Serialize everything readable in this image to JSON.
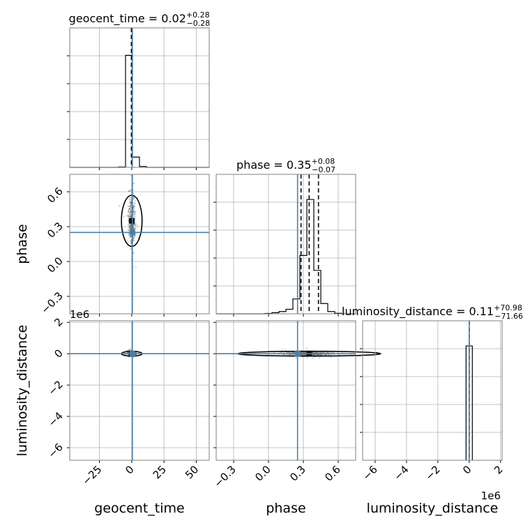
{
  "chart_data": {
    "type": "scatter",
    "subtype": "corner-plot",
    "parameters": [
      {
        "key": "geocent_time",
        "label": "geocent_time",
        "title_name": "geocent_time",
        "median": "0.02",
        "plus": "+0.28",
        "minus": "−0.28",
        "range": [
          -48,
          60
        ],
        "ticks": [
          -25,
          0,
          25,
          50
        ],
        "tick_labels": [
          "−25",
          "0",
          "25",
          "50"
        ],
        "truth": 0.5,
        "quantiles": [
          -0.26,
          0.02,
          0.3
        ],
        "hist_edges": [
          -48,
          -42.6,
          -37.2,
          -31.8,
          -26.4,
          -21,
          -15.6,
          -10.2,
          -4.8,
          0.6,
          6,
          11.4,
          16.8,
          22.2,
          27.6,
          33,
          38.4,
          43.8,
          49.2,
          54.6,
          60
        ],
        "hist_counts": [
          0,
          0,
          0,
          0,
          0,
          0,
          0,
          0.003,
          0.98,
          0.09,
          0.008,
          0,
          0,
          0,
          0,
          0,
          0,
          0,
          0,
          0
        ]
      },
      {
        "key": "phase",
        "label": "phase",
        "title_name": "phase",
        "median": "0.35",
        "plus": "+0.08",
        "minus": "−0.07",
        "range": [
          -0.45,
          0.75
        ],
        "ticks": [
          -0.3,
          0.0,
          0.3,
          0.6
        ],
        "tick_labels": [
          "−0.3",
          "0.0",
          "0.3",
          "0.6"
        ],
        "truth": 0.25,
        "quantiles": [
          0.28,
          0.35,
          0.43
        ],
        "hist_edges": [
          -0.45,
          -0.39,
          -0.33,
          -0.27,
          -0.21,
          -0.15,
          -0.09,
          -0.03,
          0.03,
          0.09,
          0.15,
          0.21,
          0.27,
          0.33,
          0.39,
          0.45,
          0.51,
          0.57,
          0.63,
          0.69,
          0.75
        ],
        "hist_counts": [
          0,
          0,
          0,
          0,
          0,
          0,
          0,
          0.003,
          0.01,
          0.02,
          0.04,
          0.13,
          0.51,
          1.0,
          0.38,
          0.09,
          0.02,
          0.005,
          0,
          0
        ]
      },
      {
        "key": "luminosity_distance",
        "label": "luminosity_distance",
        "title_name": "luminosity_distance",
        "median": "0.11",
        "plus": "+70.98",
        "minus": "−71.66",
        "range": [
          -6.8,
          2.1
        ],
        "ticks": [
          -6,
          -4,
          -2,
          0,
          2
        ],
        "tick_labels": [
          "−6",
          "−4",
          "−2",
          "0",
          "2"
        ],
        "offset_label": "1e6",
        "truth": 0.0,
        "quantiles": [
          -7.16e-05,
          1e-07,
          7.1e-05
        ],
        "hist_edges": [
          -0.2,
          0.2
        ],
        "hist_counts": [
          1.0
        ]
      }
    ],
    "truths": {
      "geocent_time": 0.5,
      "phase": 0.25,
      "luminosity_distance": 0.0
    },
    "grid": true
  }
}
